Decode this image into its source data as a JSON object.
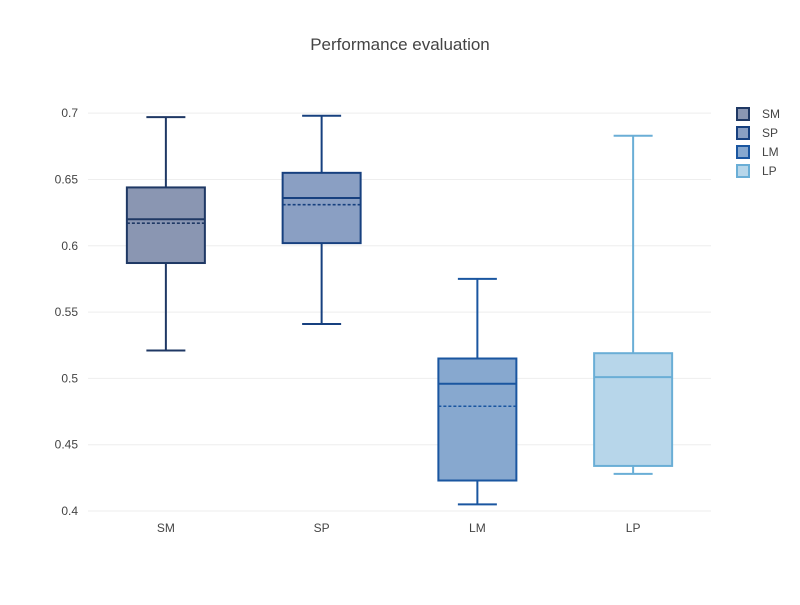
{
  "chart_data": {
    "type": "box",
    "title": "Performance evaluation",
    "xlabel": "",
    "ylabel": "",
    "ylim": [
      0.397,
      0.725
    ],
    "yticks": [
      0.4,
      0.45,
      0.5,
      0.55,
      0.6,
      0.65,
      0.7
    ],
    "ytick_labels": [
      "0.4",
      "0.45",
      "0.5",
      "0.55",
      "0.6",
      "0.65",
      "0.7"
    ],
    "grid": true,
    "legend_position": "top-right",
    "categories": [
      "SM",
      "SP",
      "LM",
      "LP"
    ],
    "series": [
      {
        "name": "SM",
        "color": "#1f3864",
        "fill": "#8a96b2",
        "min": 0.521,
        "q1": 0.587,
        "median": 0.62,
        "q3": 0.644,
        "max": 0.697,
        "mean": 0.617
      },
      {
        "name": "SP",
        "color": "#17407f",
        "fill": "#8a9fc3",
        "min": 0.541,
        "q1": 0.602,
        "median": 0.636,
        "q3": 0.655,
        "max": 0.698,
        "mean": 0.631
      },
      {
        "name": "LM",
        "color": "#1a56a0",
        "fill": "#87a8cf",
        "min": 0.405,
        "q1": 0.423,
        "median": 0.496,
        "q3": 0.515,
        "max": 0.575,
        "mean": 0.479
      },
      {
        "name": "LP",
        "color": "#6aaed6",
        "fill": "#b7d6ea",
        "min": 0.428,
        "q1": 0.434,
        "median": 0.501,
        "q3": 0.519,
        "max": 0.683,
        "mean": null
      }
    ]
  }
}
